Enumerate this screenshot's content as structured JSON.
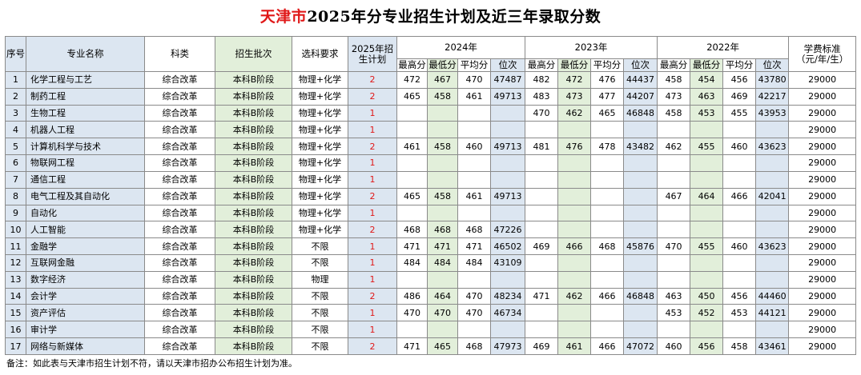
{
  "title": {
    "city": "天津市",
    "rest": "2025年分专业招生计划及近三年录取分数"
  },
  "headers": {
    "seq": "序号",
    "major": "专业名称",
    "category": "科类",
    "batch": "招生批次",
    "subject_req": "选科要求",
    "plan_2025": "2025年招生计划",
    "years": [
      "2024年",
      "2023年",
      "2022年"
    ],
    "sub": [
      "最高分",
      "最低分",
      "平均分",
      "位次"
    ],
    "tuition": "学费标准（元/年/生）"
  },
  "rows": [
    {
      "seq": "1",
      "major": "化学工程与工艺",
      "category": "综合改革",
      "batch": "本科B阶段",
      "req": "物理+化学",
      "plan": "2",
      "y2024": [
        "472",
        "467",
        "470",
        "47487"
      ],
      "y2023": [
        "482",
        "472",
        "476",
        "44437"
      ],
      "y2022": [
        "458",
        "454",
        "456",
        "43780"
      ],
      "fee": "29000"
    },
    {
      "seq": "2",
      "major": "制药工程",
      "category": "综合改革",
      "batch": "本科B阶段",
      "req": "物理+化学",
      "plan": "2",
      "y2024": [
        "465",
        "458",
        "461",
        "49713"
      ],
      "y2023": [
        "483",
        "473",
        "477",
        "44207"
      ],
      "y2022": [
        "473",
        "463",
        "469",
        "42217"
      ],
      "fee": "29000"
    },
    {
      "seq": "3",
      "major": "生物工程",
      "category": "综合改革",
      "batch": "本科B阶段",
      "req": "物理+化学",
      "plan": "1",
      "y2024": [
        "",
        "",
        "",
        ""
      ],
      "y2023": [
        "470",
        "462",
        "465",
        "46848"
      ],
      "y2022": [
        "458",
        "453",
        "455",
        "43953"
      ],
      "fee": "29000"
    },
    {
      "seq": "4",
      "major": "机器人工程",
      "category": "综合改革",
      "batch": "本科B阶段",
      "req": "物理+化学",
      "plan": "1",
      "y2024": [
        "",
        "",
        "",
        ""
      ],
      "y2023": [
        "",
        "",
        "",
        ""
      ],
      "y2022": [
        "",
        "",
        "",
        ""
      ],
      "fee": "29000"
    },
    {
      "seq": "5",
      "major": "计算机科学与技术",
      "category": "综合改革",
      "batch": "本科B阶段",
      "req": "物理+化学",
      "plan": "2",
      "y2024": [
        "461",
        "458",
        "460",
        "49713"
      ],
      "y2023": [
        "481",
        "476",
        "478",
        "43482"
      ],
      "y2022": [
        "462",
        "455",
        "460",
        "43623"
      ],
      "fee": "29000"
    },
    {
      "seq": "6",
      "major": "物联网工程",
      "category": "综合改革",
      "batch": "本科B阶段",
      "req": "物理+化学",
      "plan": "1",
      "y2024": [
        "",
        "",
        "",
        ""
      ],
      "y2023": [
        "",
        "",
        "",
        ""
      ],
      "y2022": [
        "",
        "",
        "",
        ""
      ],
      "fee": "29000"
    },
    {
      "seq": "7",
      "major": "通信工程",
      "category": "综合改革",
      "batch": "本科B阶段",
      "req": "物理+化学",
      "plan": "1",
      "y2024": [
        "",
        "",
        "",
        ""
      ],
      "y2023": [
        "",
        "",
        "",
        ""
      ],
      "y2022": [
        "",
        "",
        "",
        ""
      ],
      "fee": "29000"
    },
    {
      "seq": "8",
      "major": "电气工程及其自动化",
      "category": "综合改革",
      "batch": "本科B阶段",
      "req": "物理+化学",
      "plan": "2",
      "y2024": [
        "465",
        "458",
        "461",
        "49713"
      ],
      "y2023": [
        "",
        "",
        "",
        ""
      ],
      "y2022": [
        "467",
        "464",
        "466",
        "42041"
      ],
      "fee": "29000"
    },
    {
      "seq": "9",
      "major": "自动化",
      "category": "综合改革",
      "batch": "本科B阶段",
      "req": "物理+化学",
      "plan": "1",
      "y2024": [
        "",
        "",
        "",
        ""
      ],
      "y2023": [
        "",
        "",
        "",
        ""
      ],
      "y2022": [
        "",
        "",
        "",
        ""
      ],
      "fee": "29000"
    },
    {
      "seq": "10",
      "major": "人工智能",
      "category": "综合改革",
      "batch": "本科B阶段",
      "req": "物理+化学",
      "plan": "2",
      "y2024": [
        "468",
        "468",
        "468",
        "47226"
      ],
      "y2023": [
        "",
        "",
        "",
        ""
      ],
      "y2022": [
        "",
        "",
        "",
        ""
      ],
      "fee": "29000"
    },
    {
      "seq": "11",
      "major": "金融学",
      "category": "综合改革",
      "batch": "本科B阶段",
      "req": "不限",
      "plan": "1",
      "y2024": [
        "471",
        "471",
        "471",
        "46502"
      ],
      "y2023": [
        "469",
        "466",
        "468",
        "45876"
      ],
      "y2022": [
        "470",
        "455",
        "460",
        "43623"
      ],
      "fee": "29000"
    },
    {
      "seq": "12",
      "major": "互联网金融",
      "category": "综合改革",
      "batch": "本科B阶段",
      "req": "不限",
      "plan": "1",
      "y2024": [
        "484",
        "484",
        "484",
        "43109"
      ],
      "y2023": [
        "",
        "",
        "",
        ""
      ],
      "y2022": [
        "",
        "",
        "",
        ""
      ],
      "fee": "29000"
    },
    {
      "seq": "13",
      "major": "数字经济",
      "category": "综合改革",
      "batch": "本科B阶段",
      "req": "物理",
      "plan": "1",
      "y2024": [
        "",
        "",
        "",
        ""
      ],
      "y2023": [
        "",
        "",
        "",
        ""
      ],
      "y2022": [
        "",
        "",
        "",
        ""
      ],
      "fee": "29000"
    },
    {
      "seq": "14",
      "major": "会计学",
      "category": "综合改革",
      "batch": "本科B阶段",
      "req": "不限",
      "plan": "2",
      "y2024": [
        "486",
        "464",
        "470",
        "48234"
      ],
      "y2023": [
        "471",
        "462",
        "466",
        "46848"
      ],
      "y2022": [
        "463",
        "450",
        "456",
        "44460"
      ],
      "fee": "29000"
    },
    {
      "seq": "15",
      "major": "资产评估",
      "category": "综合改革",
      "batch": "本科B阶段",
      "req": "不限",
      "plan": "1",
      "y2024": [
        "470",
        "470",
        "470",
        "46734"
      ],
      "y2023": [
        "",
        "",
        "",
        ""
      ],
      "y2022": [
        "453",
        "452",
        "453",
        "44121"
      ],
      "fee": "29000"
    },
    {
      "seq": "16",
      "major": "审计学",
      "category": "综合改革",
      "batch": "本科B阶段",
      "req": "不限",
      "plan": "1",
      "y2024": [
        "",
        "",
        "",
        ""
      ],
      "y2023": [
        "",
        "",
        "",
        ""
      ],
      "y2022": [
        "",
        "",
        "",
        ""
      ],
      "fee": "29000"
    },
    {
      "seq": "17",
      "major": "网络与新媒体",
      "category": "综合改革",
      "batch": "本科B阶段",
      "req": "不限",
      "plan": "2",
      "y2024": [
        "471",
        "465",
        "468",
        "47973"
      ],
      "y2023": [
        "469",
        "461",
        "466",
        "47072"
      ],
      "y2022": [
        "460",
        "456",
        "458",
        "43461"
      ],
      "fee": "29000"
    }
  ],
  "note": "备注：如此表与天津市招生计划不符，请以天津市招办公布招生计划为准。"
}
